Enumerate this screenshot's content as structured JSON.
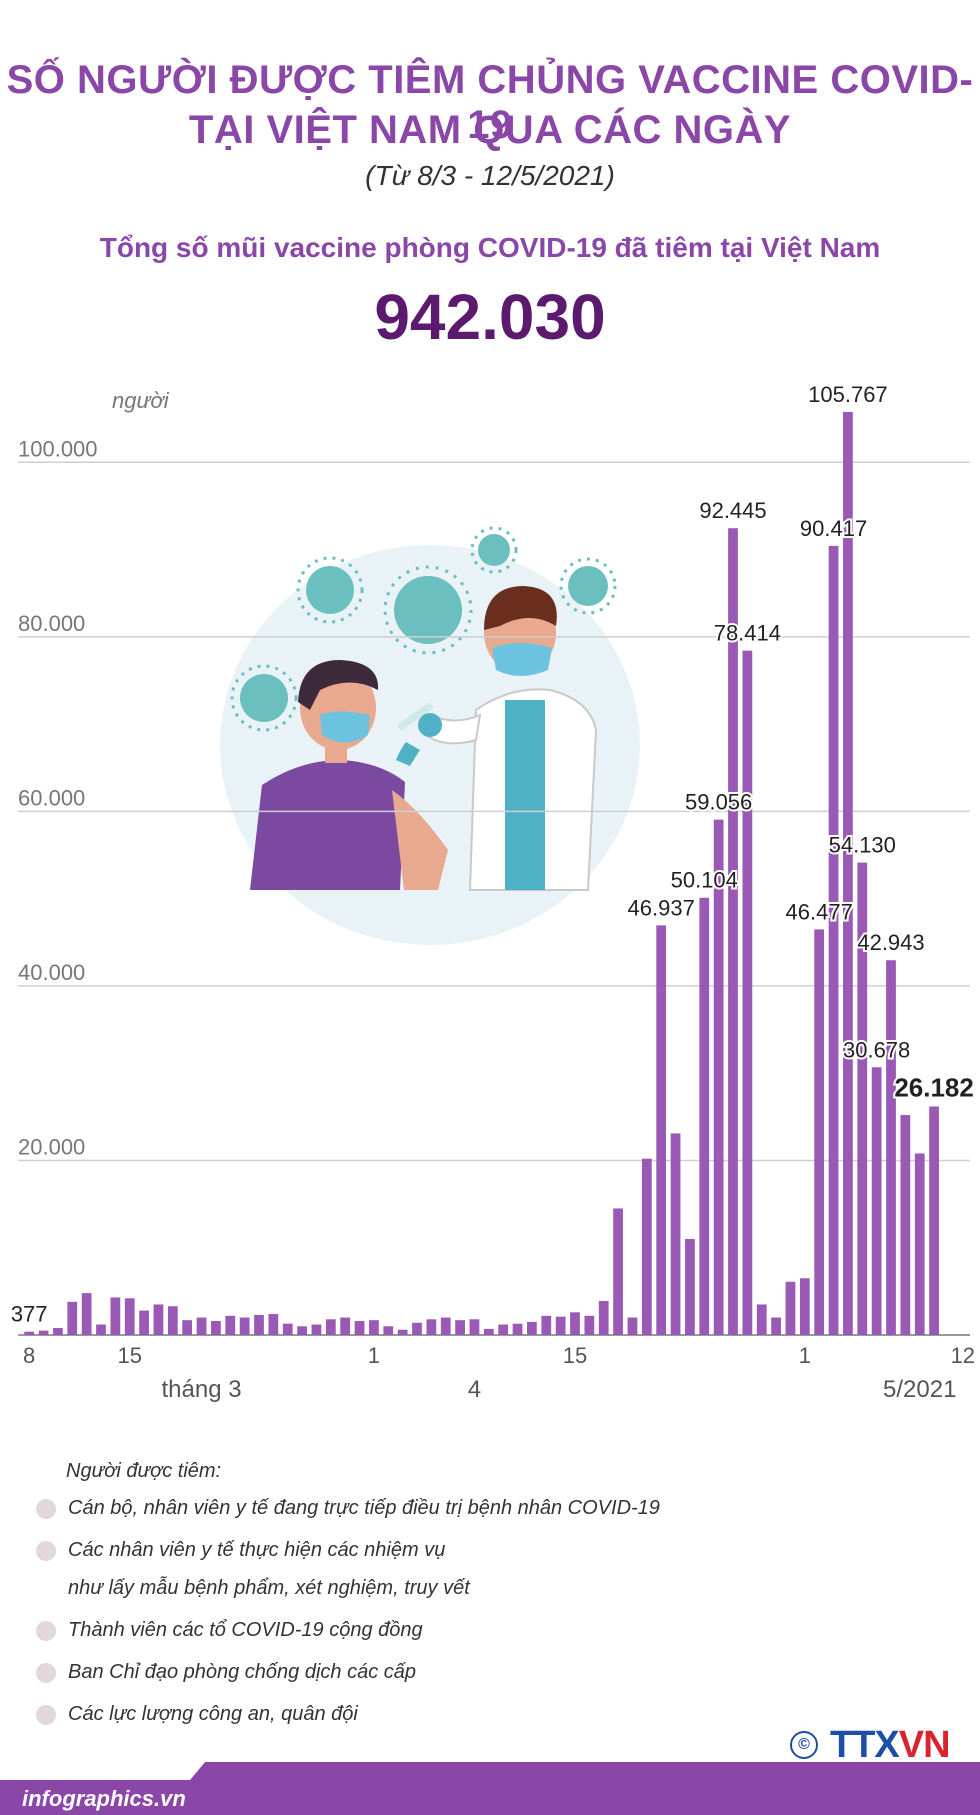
{
  "header": {
    "title_line1": "SỐ NGƯỜI ĐƯỢC TIÊM CHỦNG VACCINE COVID-19",
    "title_line2": "TẠI VIỆT NAM QUA CÁC NGÀY",
    "subtitle": "(Từ 8/3 -  12/5/2021)",
    "headline": "Tổng số mũi vaccine phòng COVID-19 đã tiêm tại Việt Nam",
    "total": "942.030"
  },
  "colors": {
    "accent": "#8a47a8",
    "bar": "#9b59b6",
    "total": "#5b1a6e",
    "grid": "#cfcfcf",
    "brand_blue": "#1e4ea8",
    "brand_red": "#d8242c"
  },
  "chart_data": {
    "type": "bar",
    "unit_label": "người",
    "ylim": [
      0,
      110000
    ],
    "y_ticks": [
      20000,
      40000,
      60000,
      80000,
      100000
    ],
    "y_tick_labels": [
      "20.000",
      "40.000",
      "60.000",
      "80.000",
      "100.000"
    ],
    "x_tick_labels": [
      "8",
      "15",
      "1",
      "15",
      "1",
      "12"
    ],
    "x_tick_dates": [
      "2021-03-08",
      "2021-03-15",
      "2021-04-01",
      "2021-04-15",
      "2021-05-01",
      "2021-05-12"
    ],
    "month_labels": [
      "tháng 3",
      "4",
      "5/2021"
    ],
    "categories": [
      "2021-03-08",
      "2021-03-09",
      "2021-03-10",
      "2021-03-11",
      "2021-03-12",
      "2021-03-13",
      "2021-03-14",
      "2021-03-15",
      "2021-03-16",
      "2021-03-17",
      "2021-03-18",
      "2021-03-19",
      "2021-03-20",
      "2021-03-21",
      "2021-03-22",
      "2021-03-23",
      "2021-03-24",
      "2021-03-25",
      "2021-03-26",
      "2021-03-27",
      "2021-03-28",
      "2021-03-29",
      "2021-03-30",
      "2021-03-31",
      "2021-04-01",
      "2021-04-02",
      "2021-04-03",
      "2021-04-04",
      "2021-04-05",
      "2021-04-06",
      "2021-04-07",
      "2021-04-08",
      "2021-04-09",
      "2021-04-10",
      "2021-04-11",
      "2021-04-12",
      "2021-04-13",
      "2021-04-14",
      "2021-04-15",
      "2021-04-16",
      "2021-04-17",
      "2021-04-18",
      "2021-04-19",
      "2021-04-20",
      "2021-04-21",
      "2021-04-22",
      "2021-04-23",
      "2021-04-24",
      "2021-04-25",
      "2021-04-26",
      "2021-04-27",
      "2021-04-28",
      "2021-04-29",
      "2021-04-30",
      "2021-05-01",
      "2021-05-02",
      "2021-05-03",
      "2021-05-04",
      "2021-05-05",
      "2021-05-06",
      "2021-05-07",
      "2021-05-08",
      "2021-05-09",
      "2021-05-10",
      "2021-05-11",
      "2021-05-12"
    ],
    "values": [
      377,
      500,
      800,
      3800,
      4800,
      1200,
      4300,
      4200,
      2800,
      3500,
      3300,
      1700,
      2000,
      1600,
      2200,
      2000,
      2300,
      2400,
      1300,
      1000,
      1200,
      1800,
      2000,
      1600,
      1700,
      1000,
      600,
      1400,
      1800,
      2000,
      1700,
      1800,
      700,
      1200,
      1300,
      1500,
      2200,
      2100,
      2600,
      2200,
      3900,
      14500,
      2000,
      20200,
      46937,
      23100,
      11000,
      50104,
      59056,
      92445,
      78414,
      3500,
      2000,
      6100,
      6500,
      46477,
      90417,
      105767,
      54130,
      30678,
      42943,
      25200,
      20800,
      26182,
      0,
      0
    ],
    "value_labels": [
      {
        "index": 0,
        "text": "377"
      },
      {
        "index": 44,
        "text": "46.937"
      },
      {
        "index": 47,
        "text": "50.104"
      },
      {
        "index": 48,
        "text": "59.056"
      },
      {
        "index": 49,
        "text": "92.445"
      },
      {
        "index": 50,
        "text": "78.414"
      },
      {
        "index": 55,
        "text": "46.477"
      },
      {
        "index": 56,
        "text": "90.417"
      },
      {
        "index": 57,
        "text": "105.767"
      },
      {
        "index": 58,
        "text": "54.130"
      },
      {
        "index": 59,
        "text": "30.678"
      },
      {
        "index": 60,
        "text": "42.943"
      },
      {
        "index": 63,
        "text": "26.182"
      }
    ],
    "grid": true,
    "legend": "none"
  },
  "notes": {
    "title": "Người được tiêm:",
    "items": [
      "Cán bộ, nhân viên y tế đang trực tiếp điều trị bệnh nhân COVID-19",
      "Các nhân viên y tế thực hiện các nhiệm vụ\nnhư lấy mẫu bệnh phẩm, xét nghiệm, truy vết",
      "Thành viên các tổ COVID-19 cộng đồng",
      "Ban Chỉ đạo phòng chống dịch các cấp",
      "Các lực lượng công an, quân đội"
    ]
  },
  "footer": {
    "site": "infographics.vn",
    "copyright": "©",
    "brand_main": "TTX",
    "brand_accent": "VN"
  }
}
